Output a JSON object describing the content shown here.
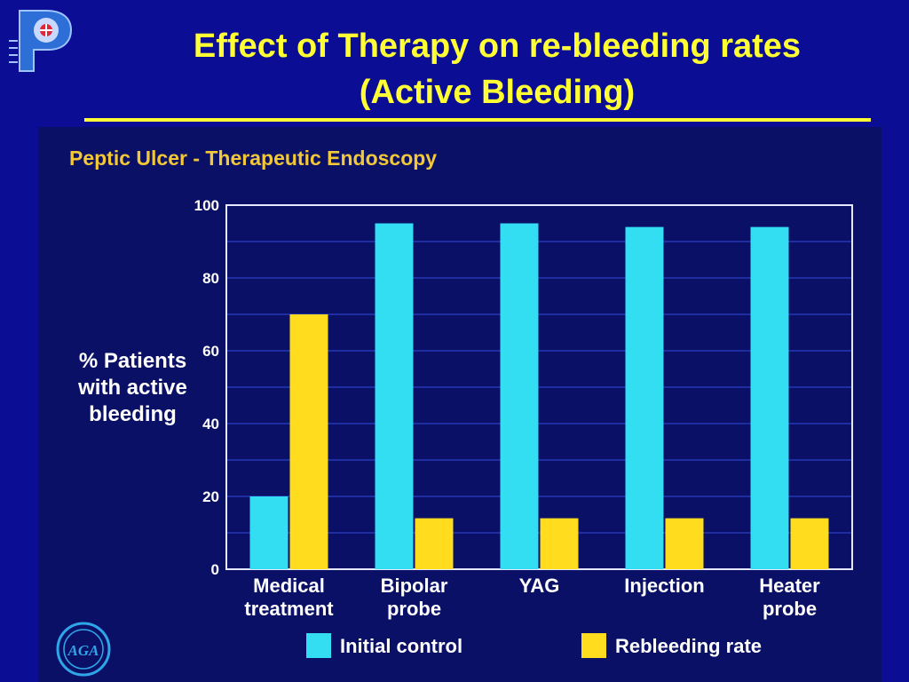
{
  "slide": {
    "title_line1": "Effect of Therapy on re-bleeding rates",
    "title_line2": "(Active Bleeding)",
    "logo_icon": "p-logo-icon",
    "seal_icon": "aga-seal-icon",
    "seal_text": "AGA"
  },
  "colors": {
    "background": "#0b0e94",
    "title": "#ffff33",
    "initial_control": "#33ddf2",
    "rebleeding_rate": "#ffdd1e"
  },
  "chart_data": {
    "type": "bar",
    "title": "Peptic Ulcer - Therapeutic Endoscopy",
    "ylabel": "% Patients\nwith active\nbleeding",
    "xlabel": "",
    "ylim": [
      0,
      100
    ],
    "yticks": [
      0,
      20,
      40,
      60,
      80,
      100
    ],
    "grid": true,
    "legend_position": "bottom",
    "categories": [
      "Medical\ntreatment",
      "Bipolar\nprobe",
      "YAG",
      "Injection",
      "Heater\nprobe"
    ],
    "series": [
      {
        "name": "Initial control",
        "values": [
          20,
          95,
          95,
          94,
          94
        ]
      },
      {
        "name": "Rebleeding rate",
        "values": [
          70,
          14,
          14,
          14,
          14
        ]
      }
    ]
  }
}
